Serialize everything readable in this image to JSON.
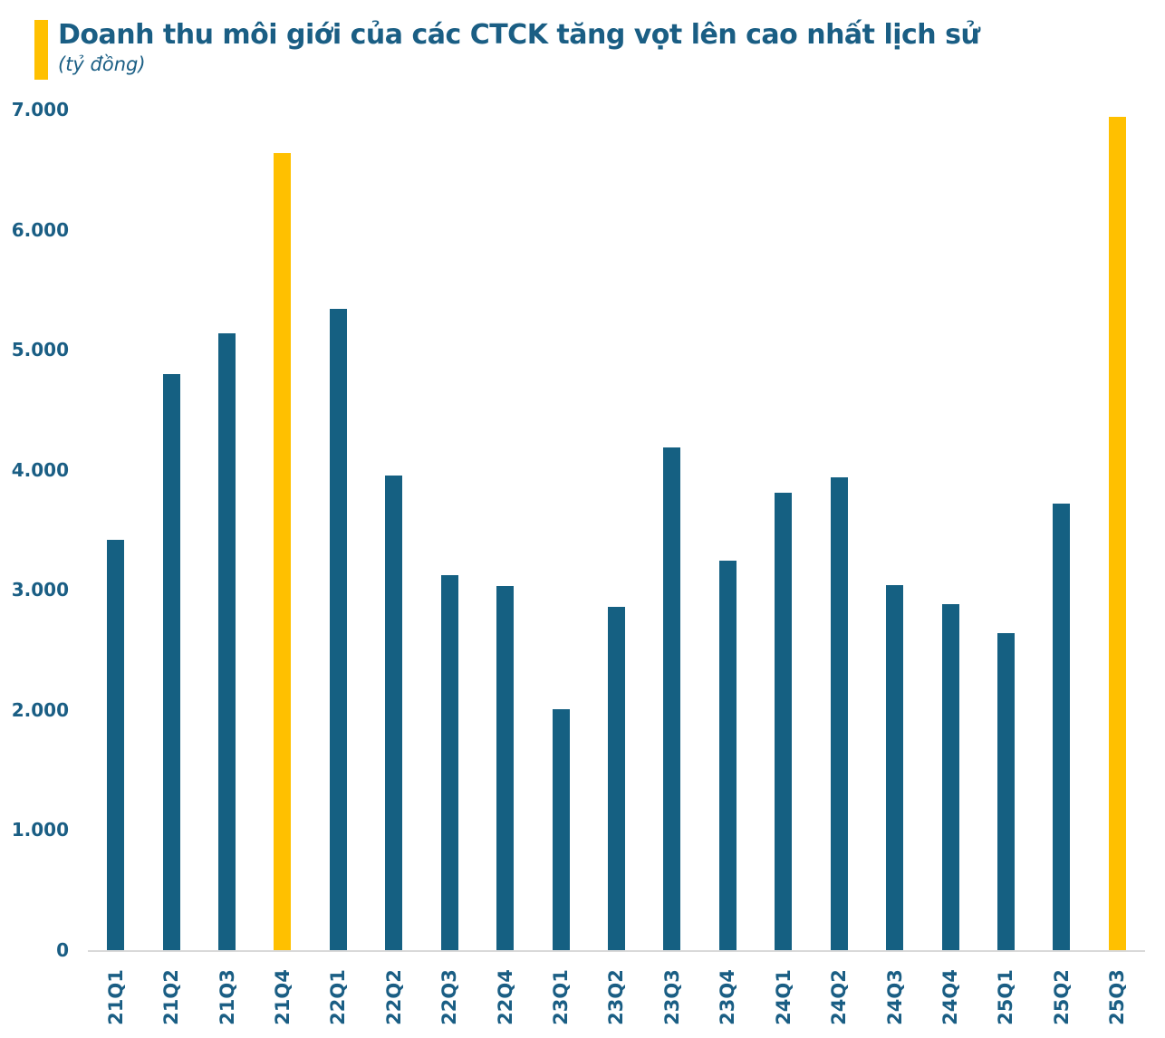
{
  "header": {
    "title": "Doanh thu môi giới của các CTCK tăng vọt lên cao nhất lịch sử",
    "subtitle": "(tỷ đồng)"
  },
  "colors": {
    "bar": "#156082",
    "highlight": "#FFC000",
    "text": "#1A5E84",
    "axis_line": "#D9D9D9",
    "background": "#FFFFFF"
  },
  "chart_data": {
    "type": "bar",
    "title": "Doanh thu môi giới của các CTCK tăng vọt lên cao nhất lịch sử",
    "unit_label": "(tỷ đồng)",
    "xlabel": "",
    "ylabel": "tỷ đồng",
    "categories": [
      "21Q1",
      "21Q2",
      "21Q3",
      "21Q4",
      "22Q1",
      "22Q2",
      "22Q3",
      "22Q4",
      "23Q1",
      "23Q2",
      "23Q3",
      "23Q4",
      "24Q1",
      "24Q2",
      "24Q3",
      "24Q4",
      "25Q1",
      "25Q2",
      "25Q3"
    ],
    "values": [
      3420,
      4800,
      5140,
      6640,
      5340,
      3950,
      3120,
      3030,
      2010,
      2860,
      4190,
      3240,
      3810,
      3940,
      3040,
      2880,
      2640,
      3720,
      6940
    ],
    "highlighted_categories": [
      "21Q4",
      "25Q3"
    ],
    "ylim": [
      0,
      7000
    ],
    "ytick_step": 1000,
    "ytick_labels": [
      "0",
      "1.000",
      "2.000",
      "3.000",
      "4.000",
      "5.000",
      "6.000",
      "7.000"
    ],
    "grid": false,
    "legend": false
  }
}
